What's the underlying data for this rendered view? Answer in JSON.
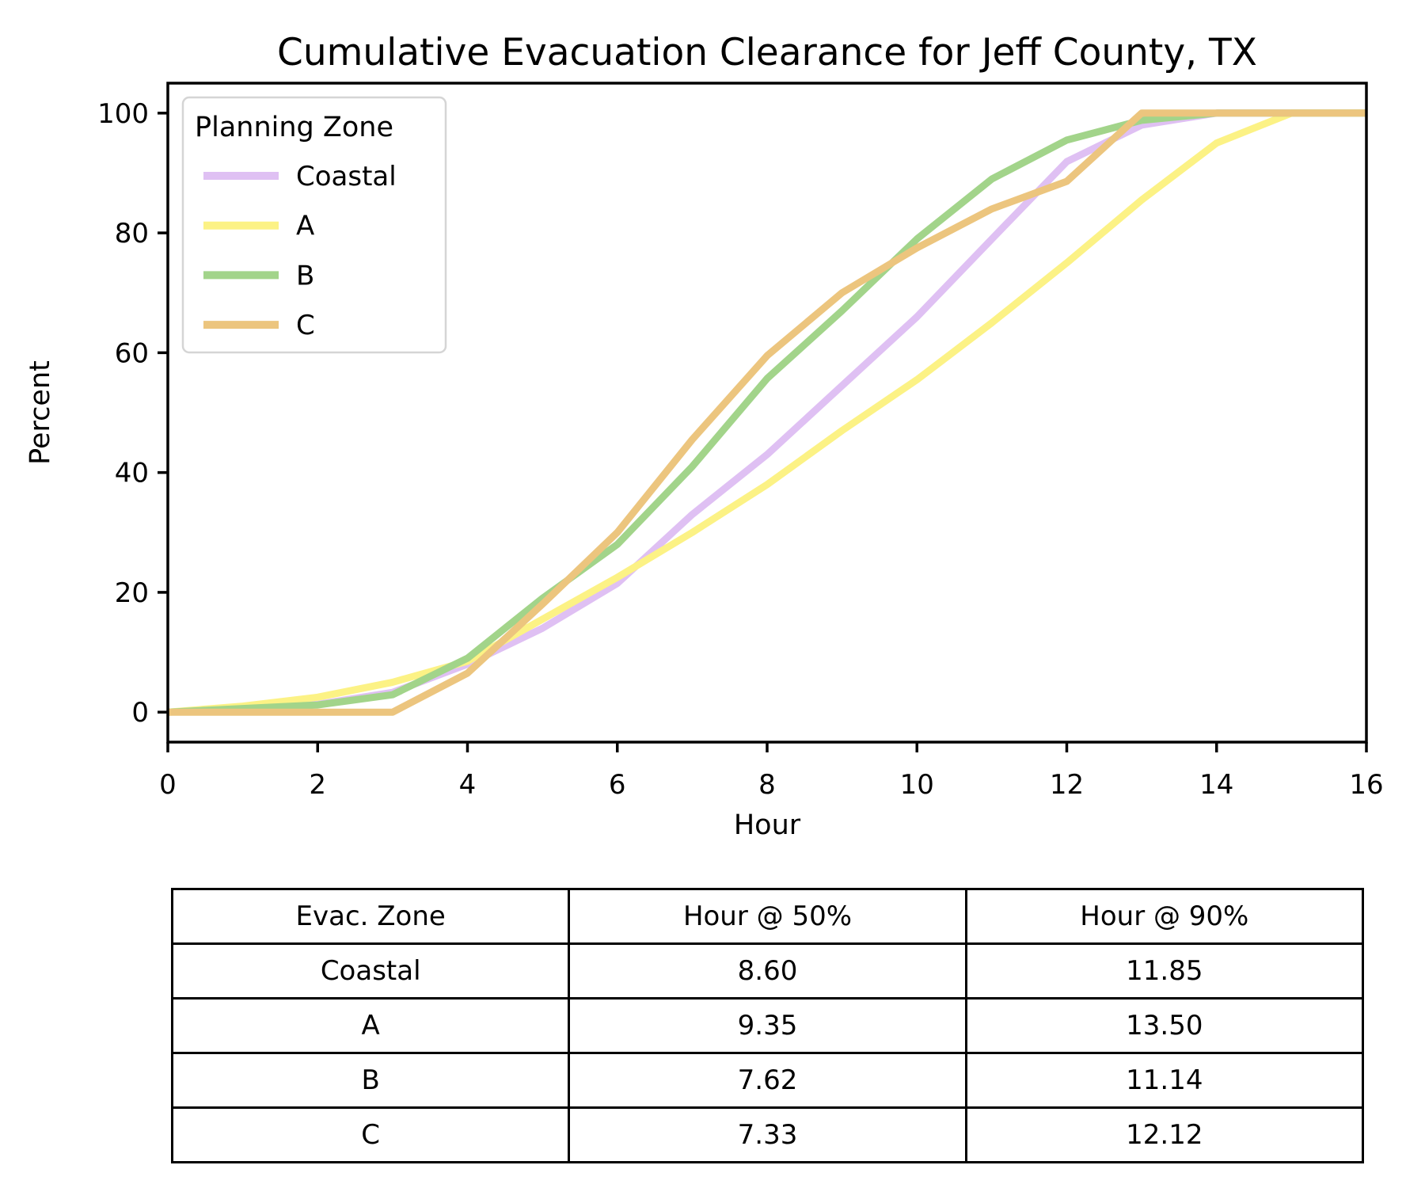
{
  "figure_title": "Cumulative Evacuation Clearance for Jeff County, TX",
  "chart_data": {
    "type": "line",
    "title": "Cumulative Evacuation Clearance for Jeff County, TX",
    "xlabel": "Hour",
    "ylabel": "Percent",
    "xlim": [
      0,
      16
    ],
    "ylim": [
      -5,
      105
    ],
    "xticks": [
      0,
      2,
      4,
      6,
      8,
      10,
      12,
      14,
      16
    ],
    "yticks": [
      0,
      20,
      40,
      60,
      80,
      100
    ],
    "grid": false,
    "legend": {
      "title": "Planning Zone",
      "position": "upper left"
    },
    "x": [
      0,
      1,
      2,
      3,
      4,
      5,
      6,
      7,
      8,
      9,
      10,
      11,
      12,
      13,
      14,
      15,
      16
    ],
    "series": [
      {
        "name": "Coastal",
        "color": "#dfc0f3",
        "values": [
          0,
          0.6,
          1.3,
          3.3,
          8,
          14,
          21.5,
          33,
          43,
          54.5,
          66,
          79,
          91.9,
          98,
          100,
          100,
          100
        ]
      },
      {
        "name": "A",
        "color": "#fcf285",
        "values": [
          0,
          1,
          2.5,
          5,
          8.5,
          15.5,
          22.5,
          30,
          38,
          47,
          55.5,
          65,
          75,
          85.5,
          95,
          100,
          100
        ]
      },
      {
        "name": "B",
        "color": "#a2d48a",
        "values": [
          0,
          0.6,
          1.2,
          2.9,
          9,
          19,
          28,
          41,
          55.7,
          67,
          79,
          89,
          95.5,
          98.8,
          100,
          100,
          100
        ]
      },
      {
        "name": "C",
        "color": "#ecc57e",
        "values": [
          0,
          0,
          0,
          0,
          6.5,
          18,
          30,
          45.5,
          59.5,
          70,
          77.5,
          84,
          88.6,
          100,
          100,
          100,
          100
        ]
      }
    ]
  },
  "table": {
    "headers": [
      "Evac. Zone",
      "Hour @ 50%",
      "Hour @ 90%"
    ],
    "rows": [
      [
        "Coastal",
        "8.60",
        "11.85"
      ],
      [
        "A",
        "9.35",
        "13.50"
      ],
      [
        "B",
        "7.62",
        "11.14"
      ],
      [
        "C",
        "7.33",
        "12.12"
      ]
    ]
  }
}
